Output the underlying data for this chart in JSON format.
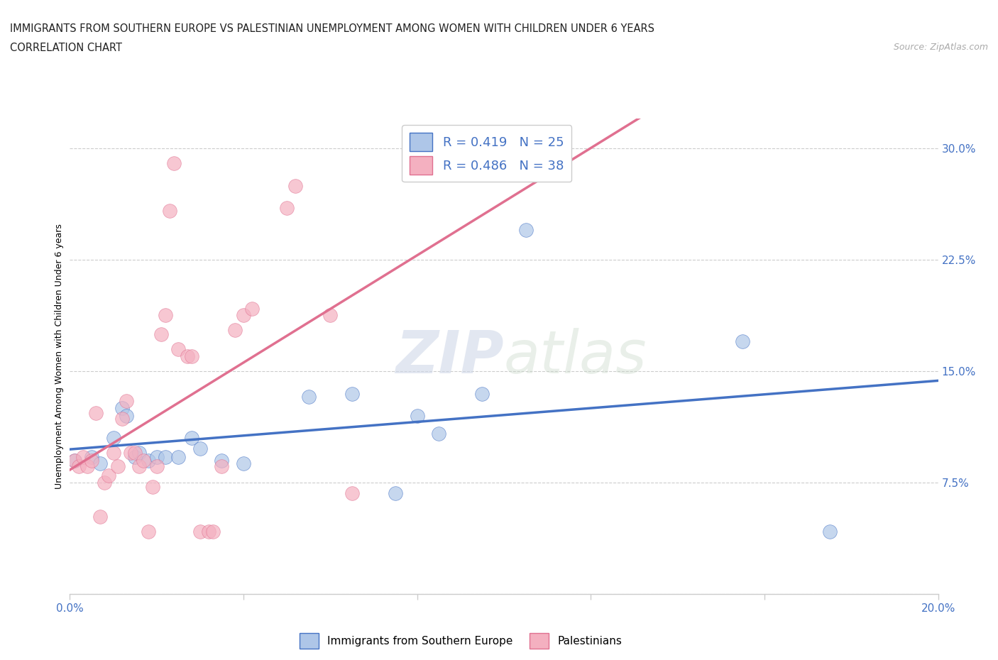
{
  "title_line1": "IMMIGRANTS FROM SOUTHERN EUROPE VS PALESTINIAN UNEMPLOYMENT AMONG WOMEN WITH CHILDREN UNDER 6 YEARS",
  "title_line2": "CORRELATION CHART",
  "source": "Source: ZipAtlas.com",
  "ylabel": "Unemployment Among Women with Children Under 6 years",
  "xlim": [
    0.0,
    0.2
  ],
  "ylim": [
    0.0,
    0.32
  ],
  "r_blue": 0.419,
  "n_blue": 25,
  "r_pink": 0.486,
  "n_pink": 38,
  "watermark_zip": "ZIP",
  "watermark_atlas": "atlas",
  "blue_scatter_x": [
    0.001,
    0.005,
    0.007,
    0.01,
    0.012,
    0.013,
    0.015,
    0.016,
    0.018,
    0.02,
    0.022,
    0.025,
    0.028,
    0.03,
    0.035,
    0.04,
    0.055,
    0.065,
    0.075,
    0.08,
    0.085,
    0.095,
    0.105,
    0.155,
    0.175
  ],
  "blue_scatter_y": [
    0.09,
    0.092,
    0.088,
    0.105,
    0.125,
    0.12,
    0.092,
    0.095,
    0.09,
    0.092,
    0.092,
    0.092,
    0.105,
    0.098,
    0.09,
    0.088,
    0.133,
    0.135,
    0.068,
    0.12,
    0.108,
    0.135,
    0.245,
    0.17,
    0.042
  ],
  "pink_scatter_x": [
    0.001,
    0.002,
    0.003,
    0.004,
    0.005,
    0.006,
    0.007,
    0.008,
    0.009,
    0.01,
    0.011,
    0.012,
    0.013,
    0.014,
    0.015,
    0.016,
    0.017,
    0.018,
    0.019,
    0.02,
    0.021,
    0.022,
    0.023,
    0.024,
    0.025,
    0.027,
    0.028,
    0.03,
    0.032,
    0.033,
    0.035,
    0.038,
    0.04,
    0.042,
    0.05,
    0.052,
    0.06,
    0.065
  ],
  "pink_scatter_y": [
    0.09,
    0.086,
    0.092,
    0.086,
    0.09,
    0.122,
    0.052,
    0.075,
    0.08,
    0.095,
    0.086,
    0.118,
    0.13,
    0.095,
    0.095,
    0.086,
    0.09,
    0.042,
    0.072,
    0.086,
    0.175,
    0.188,
    0.258,
    0.29,
    0.165,
    0.16,
    0.16,
    0.042,
    0.042,
    0.042,
    0.086,
    0.178,
    0.188,
    0.192,
    0.26,
    0.275,
    0.188,
    0.068
  ],
  "blue_line_color": "#4472c4",
  "pink_line_color": "#e07090",
  "blue_scatter_facecolor": "#aec6e8",
  "pink_scatter_facecolor": "#f4b0c0",
  "background_color": "#ffffff",
  "grid_color": "#cccccc",
  "tick_color": "#4472c4",
  "title_color": "#222222",
  "source_color": "#aaaaaa"
}
